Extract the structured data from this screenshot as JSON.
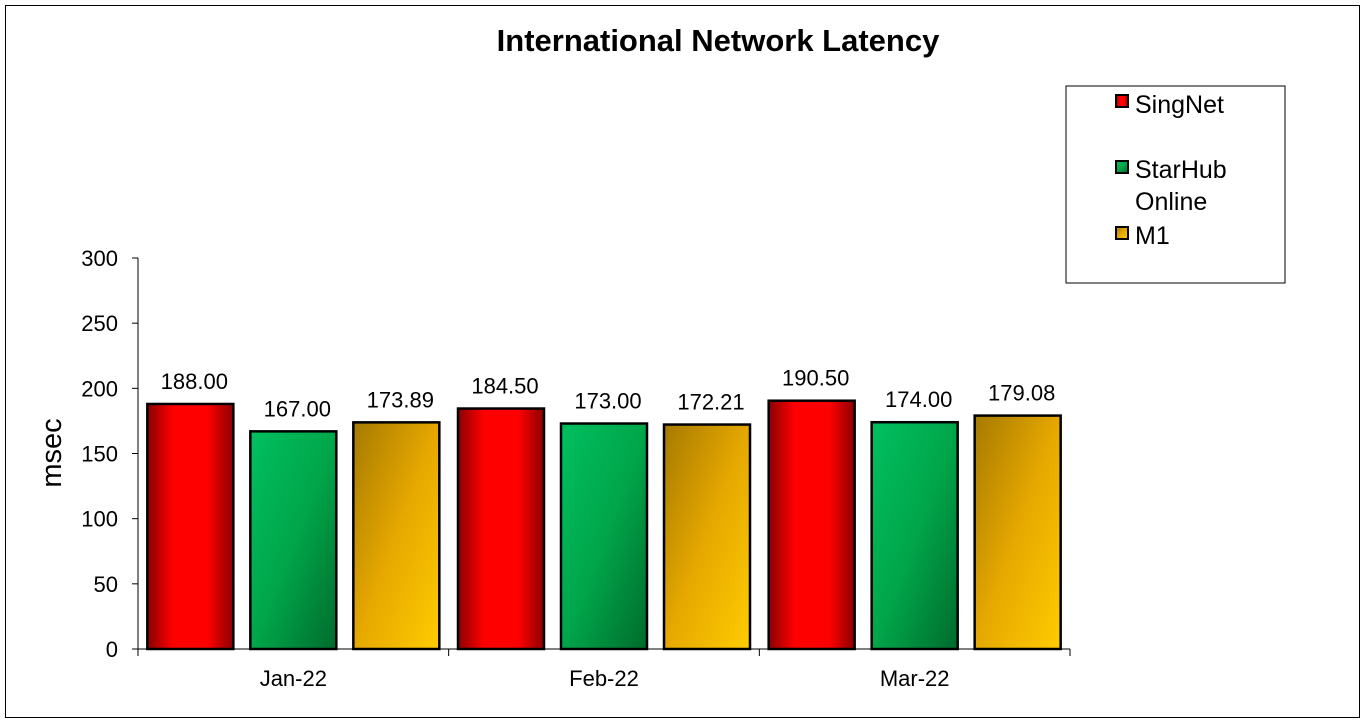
{
  "chart_data": {
    "type": "bar",
    "title": "International Network Latency",
    "xlabel": "",
    "ylabel": "msec",
    "ylim": [
      0,
      300
    ],
    "yticks": [
      "0",
      "50",
      "100",
      "150",
      "200",
      "250",
      "300"
    ],
    "categories": [
      "Jan-22",
      "Feb-22",
      "Mar-22"
    ],
    "series": [
      {
        "name": "SingNet",
        "values": [
          188.0,
          184.5,
          190.5
        ],
        "labels": [
          "188.00",
          "184.50",
          "190.50"
        ],
        "color": "#ff0000"
      },
      {
        "name": "StarHub Online",
        "values": [
          167.0,
          173.0,
          174.0
        ],
        "labels": [
          "167.00",
          "173.00",
          "174.00"
        ],
        "color": "#00b050"
      },
      {
        "name": "M1",
        "values": [
          173.89,
          172.21,
          179.08
        ],
        "labels": [
          "173.89",
          "172.21",
          "179.08"
        ],
        "color": "#f0b400"
      }
    ],
    "legend_position": "top-right",
    "grid": false
  }
}
